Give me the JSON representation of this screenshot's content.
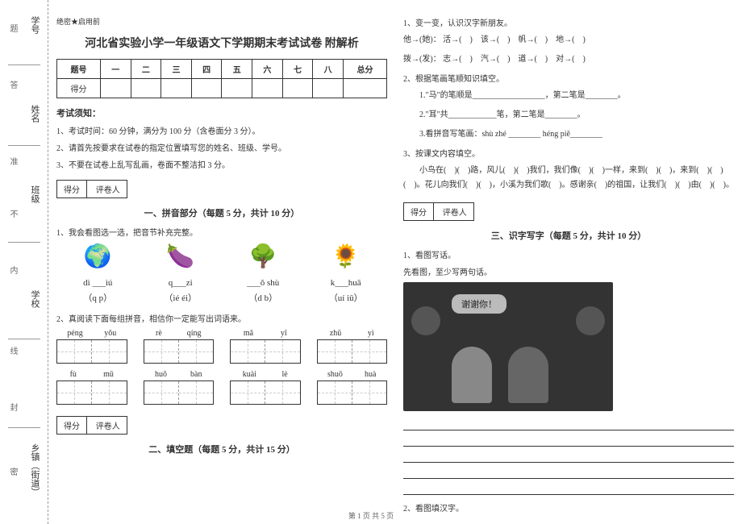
{
  "binding": {
    "labels": [
      "乡镇（街道）",
      "学校",
      "班级",
      "姓名",
      "学号"
    ],
    "marks": [
      "密",
      "封",
      "线",
      "内",
      "不",
      "准",
      "答",
      "题"
    ]
  },
  "header": {
    "secret": "绝密★启用前",
    "title": "河北省实验小学一年级语文下学期期末考试试卷 附解析"
  },
  "scoreTable": {
    "head": [
      "题号",
      "一",
      "二",
      "三",
      "四",
      "五",
      "六",
      "七",
      "八",
      "总分"
    ],
    "row": "得分"
  },
  "notice": {
    "head": "考试须知：",
    "items": [
      "1、考试时间：60 分钟，满分为 100 分（含卷面分 3 分）。",
      "2、请首先按要求在试卷的指定位置填写您的姓名、班级、学号。",
      "3、不要在试卷上乱写乱画，卷面不整洁扣 3 分。"
    ]
  },
  "secScore": {
    "a": "得分",
    "b": "评卷人"
  },
  "sec1": {
    "title": "一、拼音部分（每题 5 分，共计 10 分）",
    "q1": "1、我会看图选一选，把音节补充完整。",
    "imgs": [
      {
        "icon": "🌍",
        "py": "dì ___iú",
        "opt": "（q  p）"
      },
      {
        "icon": "🍆",
        "py": "q___zi",
        "opt": "（ié  éi）"
      },
      {
        "icon": "🌳",
        "py": "___ǒ shù",
        "opt": "（d  b）"
      },
      {
        "icon": "🌻",
        "py": "k___huā",
        "opt": "（uí  iū）"
      }
    ],
    "q2": "2、真阅读下面每组拼音，相信你一定能写出词语来。",
    "words": [
      [
        [
          "péng",
          "yǒu"
        ],
        [
          "rè",
          "qíng"
        ],
        [
          "mǎ",
          "yǐ"
        ],
        [
          "zhǔ",
          "yì"
        ]
      ],
      [
        [
          "fù",
          "mǔ"
        ],
        [
          "huǒ",
          "bàn"
        ],
        [
          "kuài",
          "lè"
        ],
        [
          "shuō",
          "huà"
        ]
      ]
    ]
  },
  "sec2": {
    "title": "二、填空题（每题 5 分，共计 15 分）",
    "q1": "1、变一变，认识汉字新朋友。",
    "lines1": [
      "他→(她)： 活→(　)　该→(　)　帆→(　)　地→(　)",
      "拨→(发)： 志→(　)　汽→(　)　道→(　)　对→(　)"
    ],
    "q2": "2、根据笔画笔顺知识填空。",
    "lines2": [
      "1.\"马\"的笔顺是__________________，第二笔是________。",
      "2.\"耳\"共____________笔，第二笔是________。",
      "3.看拼音写笔画：shù zhé ________  héng piě________"
    ],
    "q3": "3、按课文内容填空。",
    "para": "　　小鸟在(　)(　)路，风儿(　)(　)我们，我们像(　)(　)一样，来到(　)(　)，来到(　)(　)(　)。花儿向我们(　)(　)，小溪为我们歌(　)。感谢亲(　)的祖国，让我们(　)(　)由(　)(　)。"
  },
  "sec3": {
    "title": "三、识字写字（每题 5 分，共计 10 分）",
    "q1": "1、看图写话。",
    "q1b": "先看图，至少写两句话。",
    "bubble": "谢谢你！",
    "q2": "2、看图填汉字。"
  },
  "footer": "第 1 页 共 5 页"
}
